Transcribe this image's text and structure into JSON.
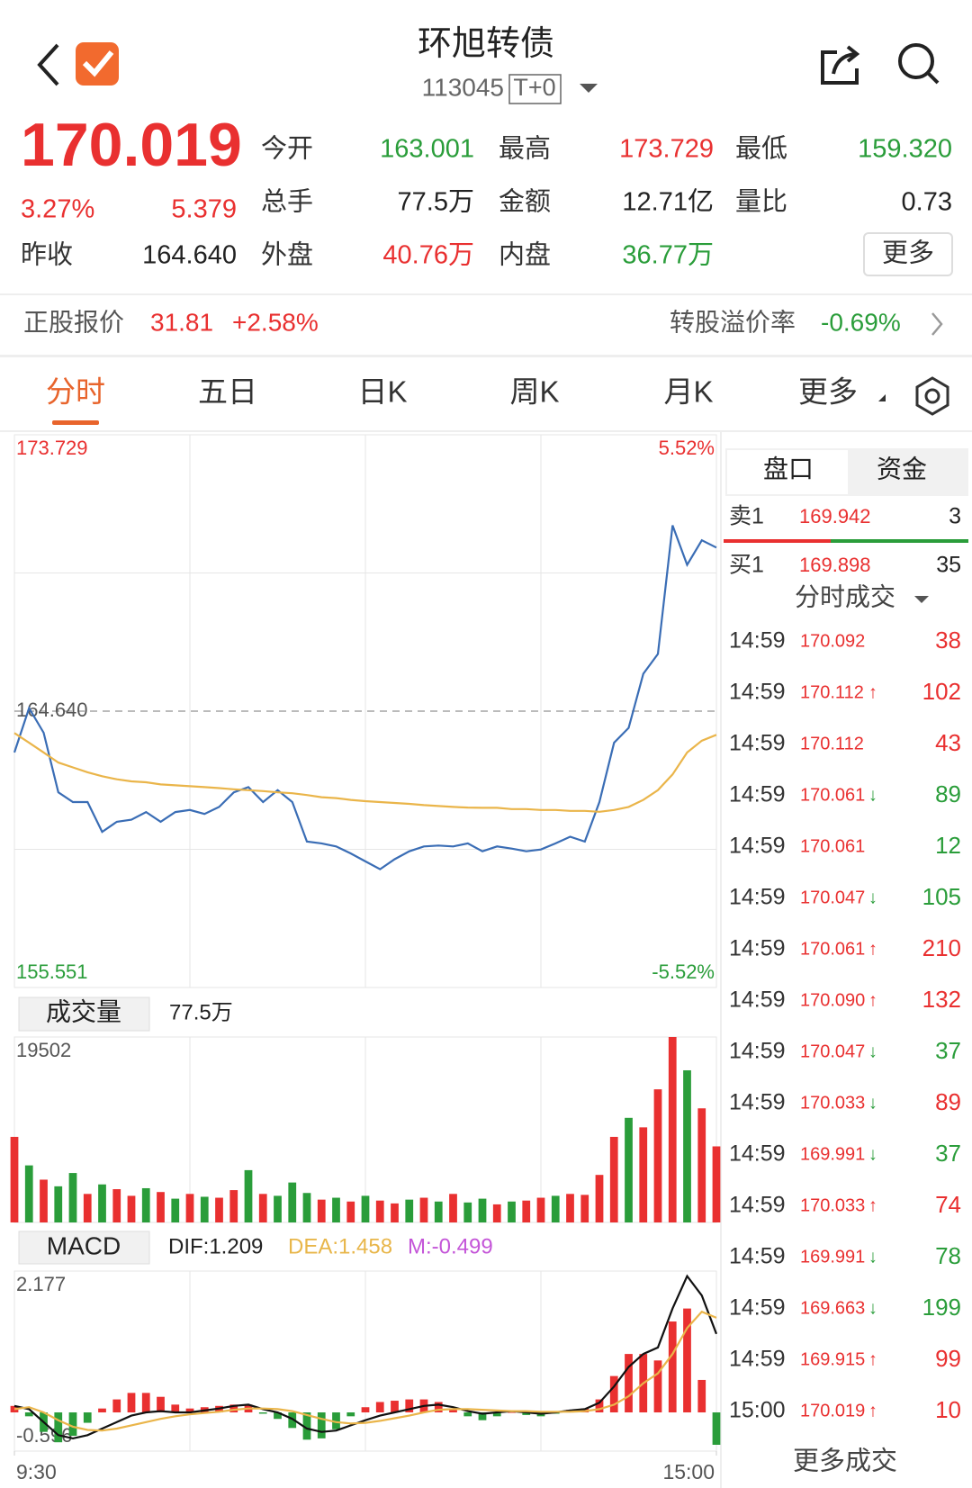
{
  "header": {
    "title": "环旭转债",
    "code": "113045",
    "tag": "T+0"
  },
  "quote": {
    "price": "170.019",
    "change_pct": "3.27%",
    "change": "5.379",
    "color": "#e93030"
  },
  "stats": [
    {
      "label": "今开",
      "value": "163.001",
      "color": "#2a9d3a"
    },
    {
      "label": "最高",
      "value": "173.729",
      "color": "#e93030"
    },
    {
      "label": "最低",
      "value": "159.320",
      "color": "#2a9d3a"
    },
    {
      "label": "总手",
      "value": "77.5万",
      "color": "#222222"
    },
    {
      "label": "金额",
      "value": "12.71亿",
      "color": "#222222"
    },
    {
      "label": "量比",
      "value": "0.73",
      "color": "#222222"
    },
    {
      "label": "外盘",
      "value": "40.76万",
      "color": "#e93030"
    },
    {
      "label": "内盘",
      "value": "36.77万",
      "color": "#2a9d3a"
    }
  ],
  "prev_close": {
    "label": "昨收",
    "value": "164.640"
  },
  "more_button": "更多",
  "underlying": {
    "label": "正股报价",
    "price": "31.81",
    "change": "+2.58%",
    "premium_label": "转股溢价率",
    "premium": "-0.69%"
  },
  "tabs": {
    "items": [
      "分时",
      "五日",
      "日K",
      "周K",
      "月K",
      "更多"
    ],
    "active": 0
  },
  "order_book": {
    "tabs": [
      "盘口",
      "资金"
    ],
    "ask": {
      "label": "卖1",
      "price": "169.942",
      "volume": "3"
    },
    "bid": {
      "label": "买1",
      "price": "169.898",
      "volume": "35"
    },
    "trades_title": "分时成交",
    "price_color": "#e93030",
    "trades": [
      {
        "time": "14:59",
        "price": "170.092",
        "volume": "38",
        "color": "#e93030"
      },
      {
        "time": "14:59",
        "price": "170.112",
        "dir": "↑",
        "arrow_color": "#e93030",
        "volume": "102",
        "color": "#e93030"
      },
      {
        "time": "14:59",
        "price": "170.112",
        "volume": "43",
        "color": "#e93030"
      },
      {
        "time": "14:59",
        "price": "170.061",
        "dir": "↓",
        "arrow_color": "#2a9d3a",
        "volume": "89",
        "color": "#2a9d3a"
      },
      {
        "time": "14:59",
        "price": "170.061",
        "volume": "12",
        "color": "#2a9d3a"
      },
      {
        "time": "14:59",
        "price": "170.047",
        "dir": "↓",
        "arrow_color": "#2a9d3a",
        "volume": "105",
        "color": "#2a9d3a"
      },
      {
        "time": "14:59",
        "price": "170.061",
        "dir": "↑",
        "arrow_color": "#e93030",
        "volume": "210",
        "color": "#e93030"
      },
      {
        "time": "14:59",
        "price": "170.090",
        "dir": "↑",
        "arrow_color": "#e93030",
        "volume": "132",
        "color": "#e93030"
      },
      {
        "time": "14:59",
        "price": "170.047",
        "dir": "↓",
        "arrow_color": "#2a9d3a",
        "volume": "37",
        "color": "#2a9d3a"
      },
      {
        "time": "14:59",
        "price": "170.033",
        "dir": "↓",
        "arrow_color": "#2a9d3a",
        "volume": "89",
        "color": "#e93030"
      },
      {
        "time": "14:59",
        "price": "169.991",
        "dir": "↓",
        "arrow_color": "#2a9d3a",
        "volume": "37",
        "color": "#2a9d3a"
      },
      {
        "time": "14:59",
        "price": "170.033",
        "dir": "↑",
        "arrow_color": "#e93030",
        "volume": "74",
        "color": "#e93030"
      },
      {
        "time": "14:59",
        "price": "169.991",
        "dir": "↓",
        "arrow_color": "#2a9d3a",
        "volume": "78",
        "color": "#2a9d3a"
      },
      {
        "time": "14:59",
        "price": "169.663",
        "dir": "↓",
        "arrow_color": "#2a9d3a",
        "volume": "199",
        "color": "#2a9d3a"
      },
      {
        "time": "14:59",
        "price": "169.915",
        "dir": "↑",
        "arrow_color": "#e93030",
        "volume": "99",
        "color": "#e93030"
      },
      {
        "time": "15:00",
        "price": "170.019",
        "dir": "↑",
        "arrow_color": "#e93030",
        "volume": "10",
        "color": "#e93030"
      }
    ],
    "more": "更多成交"
  },
  "chart_data": [
    {
      "type": "line",
      "x": [
        0,
        5,
        10,
        15,
        20,
        25,
        30,
        35,
        40,
        45,
        50,
        55,
        60,
        65,
        70,
        75,
        80,
        85,
        90,
        95,
        100,
        105,
        110,
        115,
        120,
        125,
        130,
        135,
        140,
        145,
        150,
        155,
        160,
        165,
        170,
        175,
        180,
        185,
        190,
        195,
        200,
        205,
        210,
        215,
        220,
        225,
        230,
        235,
        240
      ],
      "xlim": [
        0,
        240
      ],
      "ylim": [
        155.551,
        173.729
      ],
      "yticks": [
        155.551,
        {
          "value": 164.64,
          "label": "164.640"
        },
        173.729
      ],
      "ytick_colors": [
        "#2a9d3a",
        "#555555",
        "#e93030"
      ],
      "y2lim": [
        -5.52,
        5.52
      ],
      "y2ticks": [
        {
          "value": -5.52,
          "label": "-5.52%"
        },
        {
          "value": 5.52,
          "label": "5.52%"
        }
      ],
      "y2tick_colors": [
        "#2a9d3a",
        "#e93030"
      ],
      "series": [
        {
          "color": "#3a6db5",
          "values": [
            163.28,
            164.74,
            163.93,
            161.97,
            161.65,
            161.65,
            160.67,
            161.0,
            161.07,
            161.32,
            161.0,
            161.32,
            161.39,
            161.26,
            161.49,
            161.97,
            162.14,
            161.65,
            162.04,
            161.65,
            160.35,
            160.29,
            160.19,
            159.96,
            159.7,
            159.44,
            159.77,
            160.03,
            160.19,
            160.22,
            160.19,
            160.29,
            160.03,
            160.19,
            160.12,
            160.03,
            160.09,
            160.29,
            160.51,
            160.35,
            161.65,
            163.6,
            164.09,
            165.87,
            166.52,
            170.75,
            169.45,
            170.26,
            170.019
          ]
        },
        {
          "color": "#eab54a",
          "values": [
            163.92,
            163.6,
            163.28,
            162.95,
            162.79,
            162.63,
            162.5,
            162.4,
            162.33,
            162.3,
            162.23,
            162.2,
            162.17,
            162.14,
            162.11,
            162.07,
            162.04,
            162.01,
            161.97,
            161.94,
            161.88,
            161.81,
            161.78,
            161.72,
            161.68,
            161.65,
            161.62,
            161.59,
            161.55,
            161.52,
            161.49,
            161.47,
            161.46,
            161.46,
            161.42,
            161.42,
            161.39,
            161.39,
            161.36,
            161.36,
            161.33,
            161.39,
            161.49,
            161.72,
            162.04,
            162.56,
            163.28,
            163.67,
            163.86
          ]
        }
      ]
    },
    {
      "type": "bar",
      "title": "成交量",
      "subtitle": "77.5万",
      "x": [
        0,
        5,
        10,
        15,
        20,
        25,
        30,
        35,
        40,
        45,
        50,
        55,
        60,
        65,
        70,
        75,
        80,
        85,
        90,
        95,
        100,
        105,
        110,
        115,
        120,
        125,
        130,
        135,
        140,
        145,
        150,
        155,
        160,
        165,
        170,
        175,
        180,
        185,
        190,
        195,
        200,
        205,
        210,
        215,
        220,
        225,
        230,
        235,
        240
      ],
      "xlim": [
        0,
        240
      ],
      "ylim": [
        0,
        19502
      ],
      "yticks": [
        19502
      ],
      "values": [
        9000,
        6000,
        4500,
        3800,
        5200,
        3000,
        4000,
        3500,
        2800,
        3600,
        3200,
        2500,
        3000,
        2700,
        2600,
        3400,
        5500,
        3000,
        2800,
        4200,
        3100,
        2400,
        2600,
        2200,
        2800,
        2300,
        2000,
        2400,
        2600,
        2200,
        3000,
        2100,
        2500,
        1900,
        2200,
        2300,
        2600,
        2800,
        3000,
        2900,
        5000,
        9000,
        11000,
        10000,
        14000,
        19502,
        16000,
        12000,
        8000
      ],
      "colors": [
        "#e93030",
        "#2a9d3a",
        "#e93030",
        "#2a9d3a",
        "#2a9d3a",
        "#e93030",
        "#2a9d3a",
        "#e93030",
        "#e93030",
        "#2a9d3a",
        "#e93030",
        "#2a9d3a",
        "#e93030",
        "#2a9d3a",
        "#e93030",
        "#e93030",
        "#2a9d3a",
        "#e93030",
        "#2a9d3a",
        "#2a9d3a",
        "#2a9d3a",
        "#e93030",
        "#2a9d3a",
        "#e93030",
        "#2a9d3a",
        "#e93030",
        "#e93030",
        "#2a9d3a",
        "#e93030",
        "#2a9d3a",
        "#e93030",
        "#2a9d3a",
        "#2a9d3a",
        "#e93030",
        "#2a9d3a",
        "#e93030",
        "#e93030",
        "#2a9d3a",
        "#e93030",
        "#e93030",
        "#e93030",
        "#e93030",
        "#2a9d3a",
        "#e93030",
        "#e93030",
        "#e93030",
        "#2a9d3a",
        "#e93030",
        "#e93030"
      ]
    },
    {
      "type": "line",
      "title": "MACD",
      "x": [
        0,
        5,
        10,
        15,
        20,
        25,
        30,
        35,
        40,
        45,
        50,
        55,
        60,
        65,
        70,
        75,
        80,
        85,
        90,
        95,
        100,
        105,
        110,
        115,
        120,
        125,
        130,
        135,
        140,
        145,
        150,
        155,
        160,
        165,
        170,
        175,
        180,
        185,
        190,
        195,
        200,
        205,
        210,
        215,
        220,
        225,
        230,
        235,
        240
      ],
      "xlim": [
        0,
        240
      ],
      "xticks": [
        {
          "value": 0,
          "label": "9:30"
        },
        {
          "value": 240,
          "label": "15:00"
        }
      ],
      "ylim": [
        -0.596,
        2.177
      ],
      "yticks": [
        -0.596,
        2.177
      ],
      "series": [
        {
          "name": "DIF:1.209",
          "color": "#111111",
          "legend_color": "#222222",
          "values": [
            0.1,
            0.05,
            -0.15,
            -0.35,
            -0.4,
            -0.35,
            -0.25,
            -0.15,
            -0.05,
            0,
            0.02,
            0,
            0,
            0.03,
            0.06,
            0.1,
            0.12,
            0.05,
            0,
            -0.1,
            -0.25,
            -0.3,
            -0.28,
            -0.2,
            -0.12,
            -0.05,
            0,
            0.05,
            0.1,
            0.12,
            0.08,
            0.02,
            -0.02,
            0,
            0.02,
            0,
            -0.02,
            0,
            0.03,
            0.05,
            0.15,
            0.4,
            0.7,
            0.9,
            1.0,
            1.6,
            2.1,
            1.8,
            1.209
          ]
        },
        {
          "name": "DEA:1.458",
          "color": "#eab54a",
          "legend_color": "#e8b64a",
          "values": [
            0.05,
            0.08,
            0,
            -0.12,
            -0.22,
            -0.27,
            -0.28,
            -0.25,
            -0.2,
            -0.15,
            -0.1,
            -0.06,
            -0.03,
            -0.01,
            0.01,
            0.04,
            0.06,
            0.06,
            0.05,
            0.02,
            -0.04,
            -0.1,
            -0.15,
            -0.17,
            -0.16,
            -0.13,
            -0.09,
            -0.05,
            0,
            0.04,
            0.05,
            0.05,
            0.04,
            0.03,
            0.02,
            0.02,
            0.01,
            0.01,
            0.01,
            0.02,
            0.05,
            0.12,
            0.25,
            0.45,
            0.6,
            0.9,
            1.3,
            1.55,
            1.458
          ]
        },
        {
          "name": "M:-0.499",
          "type": "bar",
          "legend_color": "#c455d8",
          "up_color": "#e93030",
          "down_color": "#2a9d3a",
          "values": [
            0.1,
            -0.06,
            -0.3,
            -0.46,
            -0.36,
            -0.16,
            0.06,
            0.2,
            0.3,
            0.3,
            0.24,
            0.12,
            0.06,
            0.08,
            0.1,
            0.12,
            0.12,
            -0.02,
            -0.1,
            -0.24,
            -0.42,
            -0.4,
            -0.26,
            -0.06,
            0.08,
            0.16,
            0.18,
            0.2,
            0.2,
            0.16,
            0.06,
            -0.06,
            -0.12,
            -0.06,
            0,
            -0.04,
            -0.06,
            -0.02,
            0.04,
            0.06,
            0.2,
            0.56,
            0.9,
            0.9,
            0.8,
            1.4,
            1.6,
            0.5,
            -0.499
          ]
        }
      ]
    }
  ]
}
